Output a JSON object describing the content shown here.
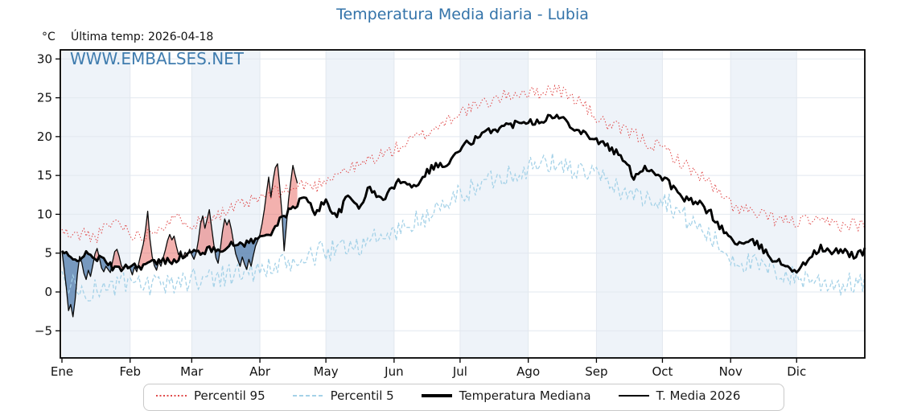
{
  "title": "Temperatura Media diaria - Lubia",
  "unit_label": "°C",
  "last_temp_label": "Última temp: 2026-04-18",
  "watermark": "WWW.EMBALSES.NET",
  "colors": {
    "title": "#3373a9",
    "watermark": "#3676ab",
    "p95_line": "#e04b4b",
    "p5_line": "#a5d2e8",
    "median_line": "#000000",
    "t2026_line": "#0a0a0a",
    "fill_above_median": "rgba(229,83,75,0.45)",
    "fill_below_median": "rgba(55,105,160,0.65)",
    "month_band": "#eef3f9",
    "gridline": "#e2e8ef",
    "spine": "#000000"
  },
  "legend": {
    "items": [
      {
        "label": "Percentil 95",
        "sample": "dotted-red"
      },
      {
        "label": "Percentil 5",
        "sample": "dashed-blue"
      },
      {
        "label": "Temperatura Mediana",
        "sample": "thick-black"
      },
      {
        "label": "T. Media 2026",
        "sample": "thin-black"
      }
    ]
  },
  "chart_data": {
    "type": "line",
    "title": "Temperatura Media diaria - Lubia",
    "ylabel": "°C",
    "annotation": "Última temp: 2026-04-18",
    "x_tick_labels": [
      "Ene",
      "Feb",
      "Mar",
      "Abr",
      "May",
      "Jun",
      "Jul",
      "Ago",
      "Sep",
      "Oct",
      "Nov",
      "Dic"
    ],
    "month_start_days": [
      0,
      31,
      59,
      90,
      120,
      151,
      181,
      212,
      243,
      273,
      304,
      334,
      365
    ],
    "y_ticks": [
      30,
      25,
      20,
      15,
      10,
      5,
      0,
      -5
    ],
    "ylim": [
      -8.5,
      31.2
    ],
    "xlim_days": [
      0,
      365
    ],
    "grid": true,
    "month_bands_shaded": [
      0,
      2,
      4,
      6,
      8,
      10
    ],
    "legend_position": "bottom",
    "series": [
      {
        "name": "Percentil 95",
        "style": "dotted",
        "width": 1.1,
        "color": "#e04b4b",
        "step_days": 5,
        "values": [
          7.8,
          7.1,
          7.6,
          6.9,
          8.3,
          9.2,
          8.0,
          7.0,
          7.8,
          8.6,
          9.1,
          9.5,
          8.7,
          9.5,
          10.0,
          10.3,
          11.0,
          11.5,
          12.0,
          12.6,
          13.0,
          13.2,
          13.9,
          13.5,
          14.6,
          15.3,
          15.8,
          16.2,
          17.1,
          17.6,
          18.2,
          18.9,
          19.7,
          20.3,
          21.2,
          22.1,
          23.1,
          23.5,
          24.0,
          24.6,
          25.1,
          25.5,
          25.8,
          25.5,
          26.0,
          26.1,
          25.3,
          24.7,
          23.2,
          22.0,
          21.3,
          20.8,
          20.3,
          19.4,
          18.8,
          18.2,
          17.0,
          15.9,
          15.1,
          13.8,
          12.2,
          11.1,
          10.6,
          10.0,
          9.7,
          9.4,
          9.1,
          9.0,
          9.2,
          8.7,
          8.9,
          8.5,
          8.8,
          8.6
        ]
      },
      {
        "name": "Percentil 5",
        "style": "dashed",
        "width": 1.3,
        "color": "#a5d2e8",
        "step_days": 5,
        "values": [
          1.7,
          0.8,
          -0.2,
          0.3,
          0.5,
          0.9,
          1.0,
          0.8,
          0.7,
          0.6,
          1.1,
          1.4,
          1.7,
          1.8,
          2.1,
          2.2,
          2.5,
          2.6,
          2.8,
          3.0,
          3.3,
          3.6,
          4.2,
          4.6,
          5.4,
          5.2,
          6.2,
          6.0,
          7.0,
          6.6,
          7.6,
          8.2,
          8.9,
          9.6,
          10.4,
          11.2,
          12.5,
          13.1,
          13.8,
          14.5,
          15.0,
          15.4,
          15.9,
          16.2,
          16.4,
          16.6,
          16.1,
          15.6,
          15.1,
          14.7,
          13.8,
          13.1,
          12.4,
          12.1,
          12.3,
          11.8,
          10.4,
          9.1,
          8.2,
          7.0,
          5.6,
          4.4,
          3.9,
          3.4,
          2.9,
          2.6,
          2.2,
          1.7,
          1.9,
          1.1,
          1.3,
          0.8,
          1.2,
          0.9
        ]
      },
      {
        "name": "Temperatura Mediana",
        "style": "solid",
        "width": 2.9,
        "color": "#000000",
        "step_days": 5,
        "values": [
          5.2,
          4.0,
          4.8,
          4.5,
          3.9,
          2.8,
          3.5,
          3.3,
          3.7,
          3.9,
          4.1,
          4.6,
          5.1,
          5.3,
          5.5,
          5.8,
          6.2,
          6.4,
          6.9,
          7.8,
          9.4,
          10.9,
          12.2,
          10.3,
          11.7,
          9.7,
          12.3,
          11.0,
          13.4,
          11.8,
          13.3,
          14.6,
          13.5,
          15.3,
          16.4,
          16.2,
          18.1,
          19.3,
          19.9,
          20.9,
          21.2,
          21.6,
          22.2,
          21.9,
          22.4,
          22.6,
          21.9,
          20.8,
          20.1,
          19.2,
          18.4,
          17.1,
          14.9,
          16.1,
          15.3,
          14.4,
          12.6,
          11.7,
          11.3,
          10.1,
          8.1,
          6.6,
          6.1,
          6.4,
          5.1,
          3.9,
          3.4,
          2.6,
          4.6,
          5.6,
          5.0,
          5.4,
          4.7,
          5.2
        ]
      },
      {
        "name": "T. Media 2026",
        "style": "solid",
        "width": 1.3,
        "color": "#0a0a0a",
        "points": [
          [
            0,
            5.3
          ],
          [
            1,
            3.0
          ],
          [
            2,
            0.5
          ],
          [
            3,
            -2.4
          ],
          [
            4,
            -1.6
          ],
          [
            5,
            -3.2
          ],
          [
            6,
            -1.0
          ],
          [
            7,
            2.2
          ],
          [
            8,
            4.6
          ],
          [
            9,
            3.8
          ],
          [
            10,
            2.4
          ],
          [
            11,
            1.6
          ],
          [
            12,
            2.8
          ],
          [
            13,
            2.0
          ],
          [
            14,
            3.4
          ],
          [
            15,
            4.9
          ],
          [
            16,
            5.6
          ],
          [
            17,
            4.4
          ],
          [
            18,
            3.1
          ],
          [
            19,
            2.6
          ],
          [
            20,
            3.3
          ],
          [
            22,
            2.5
          ],
          [
            23,
            3.9
          ],
          [
            24,
            5.2
          ],
          [
            25,
            5.5
          ],
          [
            26,
            4.6
          ],
          [
            27,
            3.4
          ],
          [
            28,
            2.9
          ],
          [
            29,
            3.6
          ],
          [
            31,
            3.0
          ],
          [
            32,
            2.2
          ],
          [
            33,
            3.2
          ],
          [
            34,
            2.6
          ],
          [
            35,
            3.8
          ],
          [
            36,
            5.0
          ],
          [
            37,
            6.2
          ],
          [
            38,
            8.0
          ],
          [
            39,
            10.4
          ],
          [
            40,
            6.8
          ],
          [
            41,
            4.6
          ],
          [
            42,
            3.4
          ],
          [
            43,
            2.8
          ],
          [
            44,
            3.9
          ],
          [
            45,
            3.3
          ],
          [
            46,
            4.4
          ],
          [
            47,
            5.4
          ],
          [
            48,
            6.6
          ],
          [
            49,
            7.4
          ],
          [
            50,
            6.7
          ],
          [
            51,
            7.2
          ],
          [
            52,
            5.9
          ],
          [
            53,
            4.8
          ],
          [
            54,
            5.3
          ],
          [
            55,
            4.4
          ],
          [
            56,
            5.1
          ],
          [
            57,
            4.6
          ],
          [
            58,
            5.5
          ],
          [
            59,
            4.8
          ],
          [
            60,
            4.2
          ],
          [
            61,
            5.0
          ],
          [
            62,
            6.6
          ],
          [
            63,
            8.8
          ],
          [
            64,
            9.8
          ],
          [
            65,
            8.2
          ],
          [
            66,
            9.4
          ],
          [
            67,
            10.6
          ],
          [
            68,
            8.4
          ],
          [
            69,
            6.2
          ],
          [
            70,
            4.4
          ],
          [
            71,
            3.7
          ],
          [
            72,
            5.6
          ],
          [
            73,
            7.8
          ],
          [
            74,
            9.4
          ],
          [
            75,
            8.6
          ],
          [
            76,
            9.3
          ],
          [
            77,
            8.1
          ],
          [
            78,
            6.4
          ],
          [
            79,
            4.9
          ],
          [
            80,
            4.1
          ],
          [
            81,
            3.3
          ],
          [
            82,
            4.5
          ],
          [
            83,
            3.6
          ],
          [
            84,
            2.9
          ],
          [
            85,
            4.2
          ],
          [
            86,
            3.3
          ],
          [
            87,
            4.7
          ],
          [
            88,
            5.9
          ],
          [
            89,
            6.6
          ],
          [
            90,
            7.4
          ],
          [
            91,
            8.8
          ],
          [
            92,
            10.6
          ],
          [
            93,
            12.8
          ],
          [
            94,
            14.8
          ],
          [
            95,
            12.2
          ],
          [
            96,
            14.4
          ],
          [
            97,
            16.0
          ],
          [
            98,
            16.5
          ],
          [
            99,
            13.6
          ],
          [
            100,
            10.2
          ],
          [
            101,
            5.3
          ],
          [
            102,
            8.4
          ],
          [
            103,
            11.8
          ],
          [
            104,
            14.2
          ],
          [
            105,
            16.3
          ],
          [
            106,
            15.1
          ],
          [
            107,
            14.0
          ]
        ]
      }
    ],
    "fills": {
      "description": "área entre T. Media 2026 y Temperatura Mediana",
      "above_median_color": "rgba(229,83,75,0.45)",
      "below_median_color": "rgba(55,105,160,0.65)"
    }
  }
}
